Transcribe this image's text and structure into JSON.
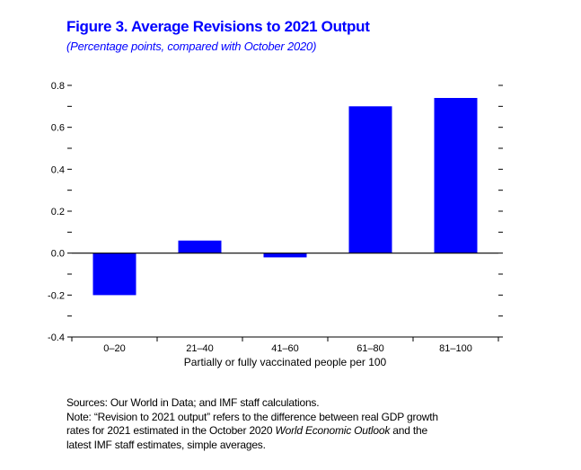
{
  "colors": {
    "title": "#0000ff",
    "bar": "#0000ff",
    "text": "#000000",
    "axis": "#000000"
  },
  "notes": {
    "sources": "Sources: Our World in Data; and IMF staff calculations.",
    "note_part1": "Note: “Revision to 2021 output” refers to the difference between real GDP growth",
    "note_part2": "rates for 2021 estimated in the October 2020 ",
    "note_italic": "World Economic Outlook",
    "note_part3": " and the",
    "note_part4": "latest IMF staff estimates, simple averages."
  },
  "chart_data": {
    "type": "bar",
    "title": "Figure 3.  Average Revisions to 2021 Output",
    "subtitle": "(Percentage points, compared with October 2020)",
    "categories": [
      "0–20",
      "21–40",
      "41–60",
      "61–80",
      "81–100"
    ],
    "values": [
      -0.2,
      0.06,
      -0.02,
      0.7,
      0.74
    ],
    "xlabel": "Partially or fully vaccinated people per 100",
    "ylabel": "",
    "ylim": [
      -0.4,
      0.8
    ],
    "yticks": [
      -0.4,
      -0.2,
      0.0,
      0.2,
      0.4,
      0.6,
      0.8
    ],
    "ytick_labels": [
      "-0.4",
      "-0.2",
      "0.0",
      "0.2",
      "0.4",
      "0.6",
      "0.8"
    ],
    "grid": false,
    "legend": "none"
  }
}
